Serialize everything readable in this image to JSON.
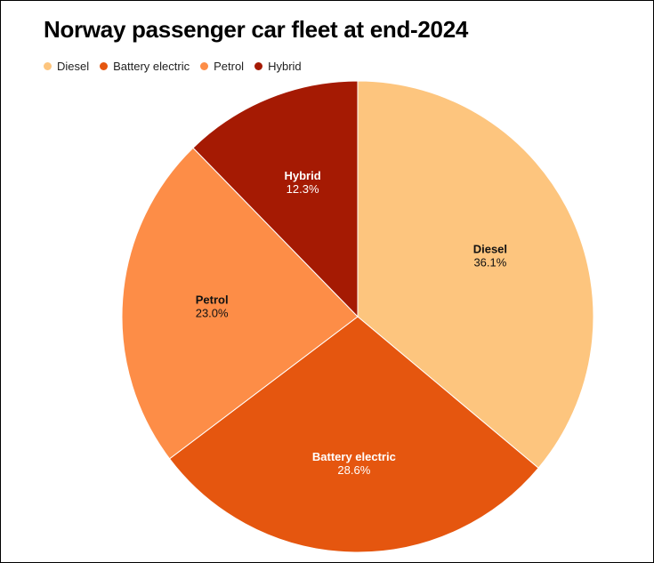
{
  "chart_data": {
    "type": "pie",
    "title": "Norway passenger car fleet at end-2024",
    "legend_position": "top-left",
    "start": "12 o'clock, clockwise",
    "slices": [
      {
        "label": "Diesel",
        "value": 36.1,
        "value_label": "36.1%",
        "color": "#fdc57e",
        "text_color": "#111111"
      },
      {
        "label": "Battery electric",
        "value": 28.6,
        "value_label": "28.6%",
        "color": "#e5560f",
        "text_color": "#ffffff"
      },
      {
        "label": "Petrol",
        "value": 23.0,
        "value_label": "23.0%",
        "color": "#fd8d47",
        "text_color": "#111111"
      },
      {
        "label": "Hybrid",
        "value": 12.3,
        "value_label": "12.3%",
        "color": "#a51a03",
        "text_color": "#ffffff"
      }
    ]
  }
}
